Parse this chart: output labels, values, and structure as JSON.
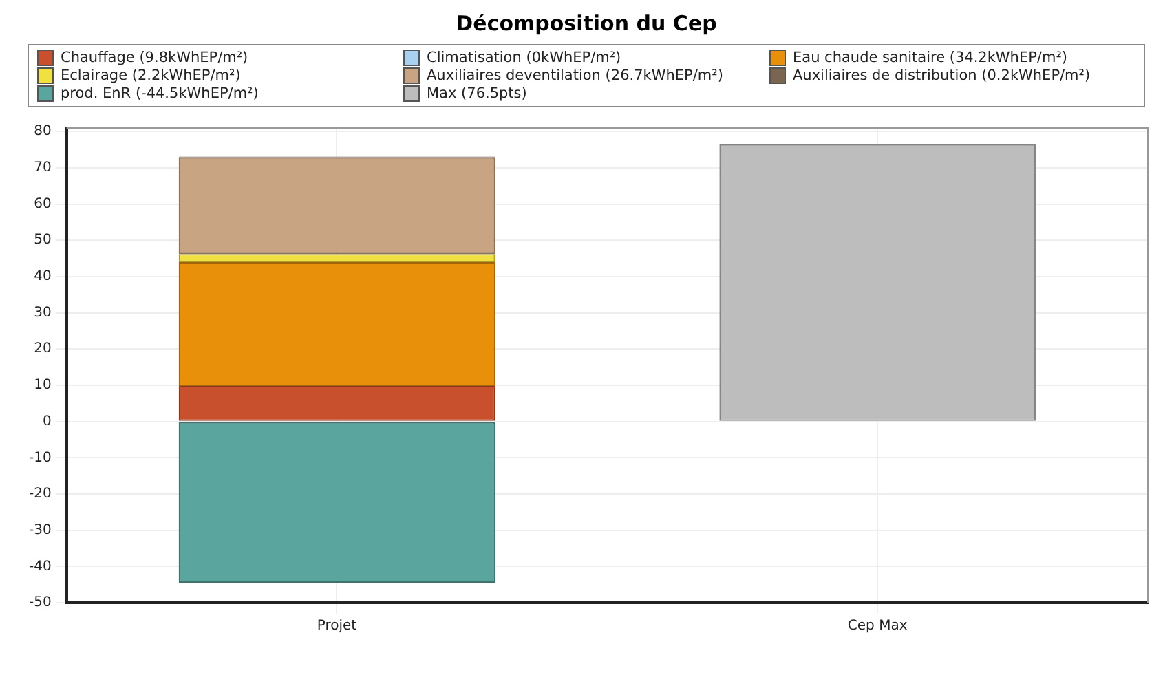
{
  "chart_data": {
    "type": "bar",
    "title": "Décomposition du Cep",
    "categories": [
      "Projet",
      "Cep Max"
    ],
    "stacked": true,
    "legend": "top",
    "grid": true,
    "ylim": [
      -50,
      81
    ],
    "yticks": [
      -50,
      -40,
      -30,
      -20,
      -10,
      0,
      10,
      20,
      30,
      40,
      50,
      60,
      70,
      80
    ],
    "series": [
      {
        "name": "Chauffage (9.8kWhEP/m²)",
        "color": "#c8502c",
        "values": [
          9.8,
          null
        ]
      },
      {
        "name": "Climatisation (0kWhEP/m²)",
        "color": "#a8d0f0",
        "values": [
          0,
          null
        ]
      },
      {
        "name": "Eau chaude sanitaire (34.2kWhEP/m²)",
        "color": "#e8900a",
        "values": [
          34.2,
          null
        ]
      },
      {
        "name": "Eclairage (2.2kWhEP/m²)",
        "color": "#f0e040",
        "values": [
          2.2,
          null
        ]
      },
      {
        "name": "Auxiliaires deventilation (26.7kWhEP/m²)",
        "color": "#c8a482",
        "values": [
          26.7,
          null
        ]
      },
      {
        "name": "Auxiliaires de distribution (0.2kWhEP/m²)",
        "color": "#7a6650",
        "values": [
          0.2,
          null
        ]
      },
      {
        "name": "prod. EnR (-44.5kWhEP/m²)",
        "color": "#5ba59f",
        "values": [
          -44.5,
          null
        ]
      },
      {
        "name": "Max (76.5pts)",
        "color": "#bdbdbd",
        "values": [
          null,
          76.5
        ]
      }
    ]
  }
}
